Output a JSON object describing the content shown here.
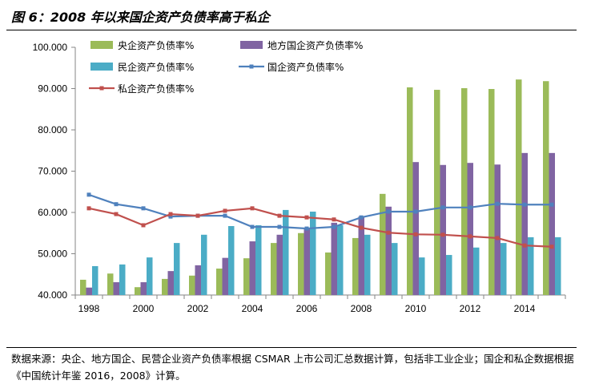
{
  "title": "图 6：2008 年以来国企资产负债率高于私企",
  "source": "数据来源：央企、地方国企、民营企业资产负债率根据 CSMAR 上市公司汇总数据计算，包括非工业企业；国企和私企数据根据《中国统计年鉴 2016，2008》计算。",
  "chart_data": {
    "type": "bar+line",
    "title": "",
    "xlabel": "",
    "ylabel": "",
    "ylim": [
      40,
      100
    ],
    "yticks": [
      "40.000",
      "50.000",
      "60.000",
      "70.000",
      "80.000",
      "90.000",
      "100.000"
    ],
    "categories": [
      1998,
      1999,
      2000,
      2001,
      2002,
      2003,
      2004,
      2005,
      2006,
      2007,
      2008,
      2009,
      2010,
      2011,
      2012,
      2013,
      2014,
      2015
    ],
    "xtick_labels": [
      "1998",
      "2000",
      "2002",
      "2004",
      "2006",
      "2008",
      "2010",
      "2012",
      "2014"
    ],
    "grid": false,
    "legend_placement": "top-left",
    "series": [
      {
        "name": "央企资产负债率%",
        "kind": "bar",
        "color": "#9BBB59",
        "values": [
          43.7,
          45.2,
          41.9,
          43.9,
          44.7,
          46.4,
          48.9,
          52.6,
          55.0,
          50.3,
          53.8,
          64.5,
          90.3,
          89.7,
          90.1,
          89.9,
          92.2,
          91.8
        ]
      },
      {
        "name": "地方国企资产负债率%",
        "kind": "bar",
        "color": "#8064A2",
        "values": [
          41.8,
          43.1,
          43.1,
          45.8,
          47.2,
          49.0,
          53.0,
          54.6,
          56.1,
          57.5,
          59.0,
          61.4,
          72.2,
          71.5,
          72.0,
          71.6,
          74.4,
          74.4
        ]
      },
      {
        "name": "民企资产负债率%",
        "kind": "bar",
        "color": "#4BACC6",
        "values": [
          47.0,
          47.4,
          49.1,
          52.6,
          54.6,
          56.7,
          56.9,
          60.6,
          60.2,
          56.9,
          54.6,
          52.6,
          49.1,
          49.7,
          51.5,
          52.6,
          54.0,
          54.0
        ]
      },
      {
        "name": "国企资产负债率%",
        "kind": "line",
        "color": "#4F81BD",
        "values": [
          64.3,
          62.0,
          61.0,
          59.0,
          59.2,
          59.2,
          56.5,
          56.5,
          56.1,
          56.5,
          58.8,
          60.2,
          60.2,
          61.2,
          61.2,
          62.1,
          61.9,
          61.9
        ]
      },
      {
        "name": "私企资产负债率%",
        "kind": "line",
        "color": "#C0504D",
        "values": [
          61.0,
          59.6,
          56.9,
          59.6,
          59.2,
          60.4,
          61.0,
          59.2,
          58.8,
          58.3,
          56.3,
          55.1,
          54.7,
          54.6,
          54.2,
          53.8,
          52.0,
          51.7
        ]
      }
    ]
  }
}
